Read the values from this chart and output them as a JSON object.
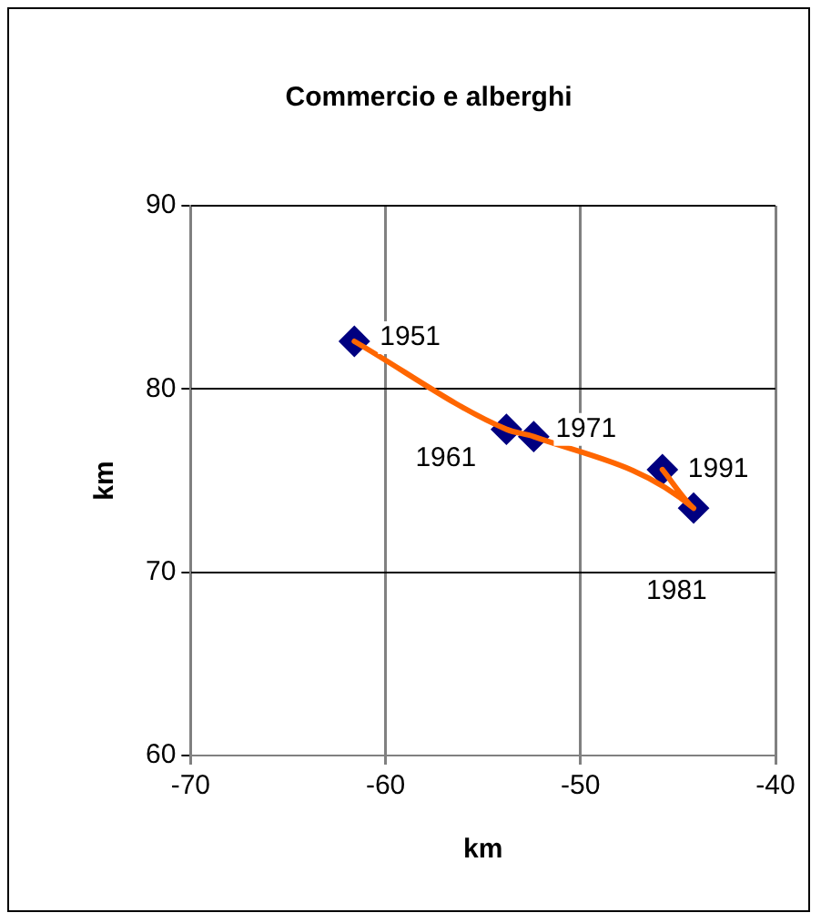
{
  "chart_data": {
    "type": "scatter",
    "title": "Commercio e alberghi",
    "xlabel": "km",
    "ylabel": "km",
    "x": [
      -61.6,
      -53.8,
      -52.4,
      -44.2,
      -45.8
    ],
    "series": [
      {
        "type": "line",
        "color": "#ff6600",
        "values": [
          82.6,
          77.8,
          77.4,
          73.5,
          75.6
        ],
        "marker": "none"
      },
      {
        "type": "scatter",
        "color": "#000080",
        "values": [
          82.6,
          77.8,
          77.4,
          73.5,
          75.6
        ],
        "marker": "diamond"
      }
    ],
    "xlim": [
      -70,
      -40
    ],
    "xticks": [
      -70,
      -60,
      -50,
      -40
    ],
    "ylim": [
      60,
      90
    ],
    "yticks": [
      60,
      70,
      80,
      90
    ],
    "grid": true,
    "legend": false,
    "annotations": [
      {
        "text": "1951",
        "x": -61.6,
        "y": 82.6
      },
      {
        "text": "1961",
        "x": -53.8,
        "y": 77.8
      },
      {
        "text": "1971",
        "x": -52.4,
        "y": 77.4
      },
      {
        "text": "1981",
        "x": -44.2,
        "y": 73.5
      },
      {
        "text": "1991",
        "x": -45.8,
        "y": 75.6
      }
    ]
  }
}
